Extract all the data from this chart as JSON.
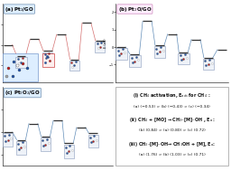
{
  "panel_a_label": "(a) Pt$_2$/GO",
  "panel_b_label": "(b) Pt$_2$O/GO",
  "panel_c_label": "(c) Pt$_2$O$_2$/GO",
  "text_lines_bold": [
    "(i) CH$_4$ activation, E$_{ads}$ for CH$_4$ :",
    "(ii) CH$_4$ + [MO] → CH$_3$–[M]–OH , E$_a$ :",
    "(iii) CH$_3$–[M]–OH→ CH$_3$OH + [M], E$_a$:"
  ],
  "text_lines_normal": [
    "(a) (−0.53) > (b) (−0.43) > (c) (−0.34)",
    "(b) (0.84) > (a) (0.80) > (c) (0.72)",
    "(a) (1.76) > (b) (1.03) > (c) (0.71)"
  ],
  "panel_a": {
    "levels_x": [
      0.05,
      0.35,
      0.7,
      1.1,
      1.5,
      1.9,
      2.5,
      3.1,
      3.6,
      4.2,
      4.7,
      5.3,
      5.9,
      6.4,
      7.0,
      7.5,
      8.1,
      8.7,
      9.3
    ],
    "levels_y": [
      0.0,
      0.0,
      -0.53,
      -0.53,
      -0.26,
      -0.26,
      0.27,
      0.27,
      -0.3,
      -0.3,
      0.5,
      0.5,
      -0.7,
      -0.7,
      1.06,
      1.06,
      0.2,
      0.2,
      0.2
    ],
    "connect_color": "#e06060",
    "has_big_box": true
  },
  "panel_b": {
    "connect_color": "#5080b0",
    "has_big_box": false
  },
  "panel_c": {
    "connect_color": "#5080b0",
    "has_big_box": true
  },
  "bg_white": "#ffffff",
  "box_bg": "#eef2f8",
  "box_edge": "#8899bb",
  "label_box_bg": "#ddeeff",
  "label_box_edge": "#7090b0"
}
